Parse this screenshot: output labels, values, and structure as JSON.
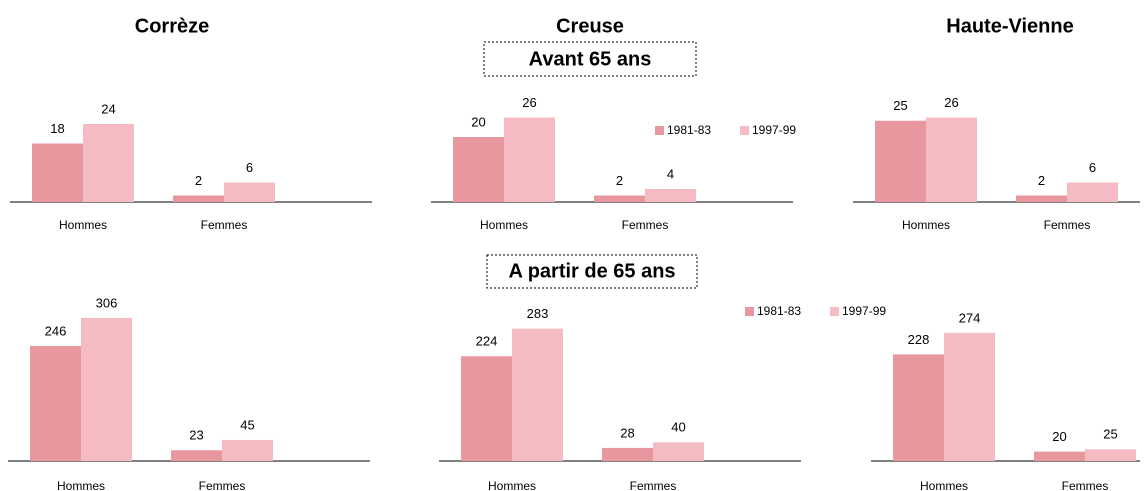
{
  "sections": [
    "Avant 65 ans",
    "A partir de 65 ans"
  ],
  "chart_data": [
    {
      "type": "bar",
      "title": "Corrèze",
      "categories": [
        "Hommes",
        "Femmes"
      ],
      "ylim": [
        0,
        30
      ],
      "series": [
        {
          "color": "#e8979f",
          "values": [
            18,
            2
          ]
        },
        {
          "color": "#f4bcc2",
          "values": [
            24,
            6
          ]
        }
      ]
    },
    {
      "type": "bar",
      "title": "Creuse",
      "categories": [
        "Hommes",
        "Femmes"
      ],
      "ylim": [
        0,
        30
      ],
      "legend": "top-right",
      "series": [
        {
          "name": "1981-83",
          "color": "#e8979f",
          "values": [
            20,
            2
          ]
        },
        {
          "name": "1997-99",
          "color": "#f4bcc2",
          "values": [
            26,
            4
          ]
        }
      ]
    },
    {
      "type": "bar",
      "title": "Haute-Vienne",
      "categories": [
        "Hommes",
        "Femmes"
      ],
      "ylim": [
        0,
        30
      ],
      "series": [
        {
          "color": "#e8979f",
          "values": [
            25,
            2
          ]
        },
        {
          "color": "#f4bcc2",
          "values": [
            26,
            6
          ]
        }
      ]
    },
    {
      "type": "bar",
      "categories": [
        "Hommes",
        "Femmes"
      ],
      "ylim": [
        0,
        340
      ],
      "series": [
        {
          "color": "#e8979f",
          "values": [
            246,
            23
          ]
        },
        {
          "color": "#f4bcc2",
          "values": [
            306,
            45
          ]
        }
      ]
    },
    {
      "type": "bar",
      "categories": [
        "Hommes",
        "Femmes"
      ],
      "ylim": [
        0,
        340
      ],
      "legend": "top-right",
      "series": [
        {
          "name": "1981-83",
          "color": "#e8979f",
          "values": [
            224,
            28
          ]
        },
        {
          "name": "1997-99",
          "color": "#f4bcc2",
          "values": [
            283,
            40
          ]
        }
      ]
    },
    {
      "type": "bar",
      "categories": [
        "Hommes",
        "Femmes"
      ],
      "ylim": [
        0,
        340
      ],
      "series": [
        {
          "color": "#e8979f",
          "values": [
            228,
            20
          ]
        },
        {
          "color": "#f4bcc2",
          "values": [
            274,
            25
          ]
        }
      ]
    }
  ]
}
